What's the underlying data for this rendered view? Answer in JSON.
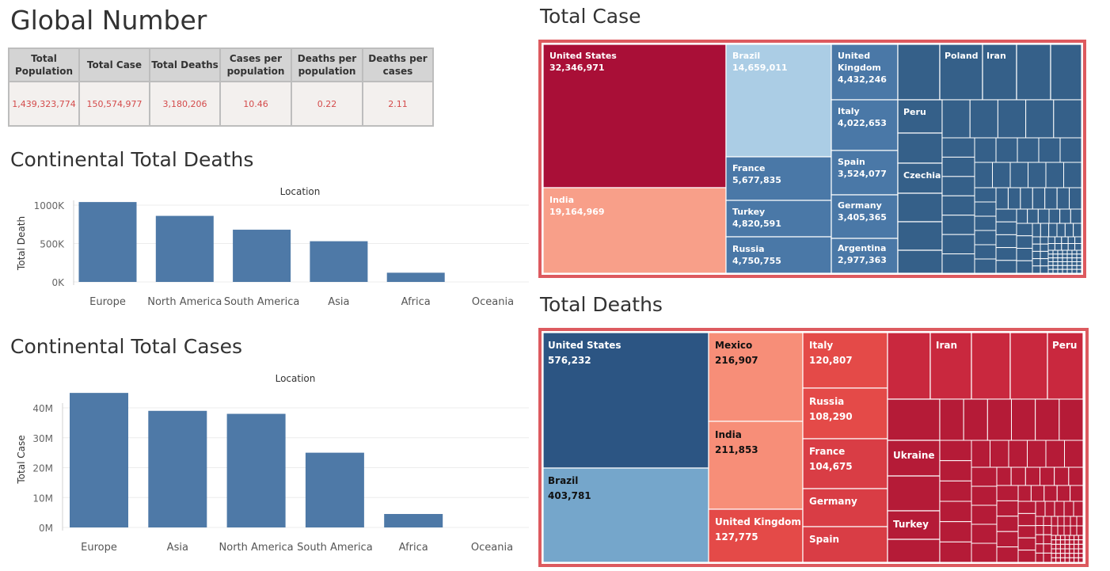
{
  "global": {
    "title": "Global Number",
    "headers": [
      "Total Population",
      "Total Case",
      "Total Deaths",
      "Cases per population",
      "Deaths per population",
      "Deaths per cases"
    ],
    "values": [
      "1,439,323,774",
      "150,574,977",
      "3,180,206",
      "10.46",
      "0.22",
      "2.11"
    ]
  },
  "deaths_section": {
    "title": "Continental Total Deaths"
  },
  "cases_section": {
    "title": "Continental Total Cases"
  },
  "total_case_section": {
    "title": "Total Case"
  },
  "total_deaths_section": {
    "title": "Total Deaths"
  },
  "colors": {
    "bar": "#4e79a7",
    "frame": "#dd5a5f"
  },
  "chart_data": [
    {
      "type": "bar",
      "title": "",
      "xlabel": "Location",
      "ylabel": "Total Death",
      "categories": [
        "Europe",
        "North America",
        "South America",
        "Asia",
        "Africa",
        "Oceania"
      ],
      "values": [
        1040000,
        860000,
        680000,
        530000,
        120000,
        1000
      ],
      "yticks": [
        "0K",
        "500K",
        "1000K"
      ],
      "ylim": [
        0,
        1000000
      ],
      "grid": true
    },
    {
      "type": "bar",
      "title": "",
      "xlabel": "Location",
      "ylabel": "Total Case",
      "categories": [
        "Europe",
        "Asia",
        "North America",
        "South America",
        "Africa",
        "Oceania"
      ],
      "values": [
        45000000,
        39000000,
        38000000,
        25000000,
        4500000,
        50000
      ],
      "yticks": [
        "0M",
        "10M",
        "20M",
        "30M",
        "40M"
      ],
      "ylim": [
        0,
        40000000
      ],
      "grid": true
    },
    {
      "type": "treemap",
      "title": "Total Case",
      "labels": [
        {
          "name": "United States",
          "value": "32,346,971"
        },
        {
          "name": "India",
          "value": "19,164,969"
        },
        {
          "name": "Brazil",
          "value": "14,659,011"
        },
        {
          "name": "France",
          "value": "5,677,835"
        },
        {
          "name": "Turkey",
          "value": "4,820,591"
        },
        {
          "name": "Russia",
          "value": "4,750,755"
        },
        {
          "name": "United Kingdom",
          "value": "4,432,246"
        },
        {
          "name": "Italy",
          "value": "4,022,653"
        },
        {
          "name": "Spain",
          "value": "3,524,077"
        },
        {
          "name": "Germany",
          "value": "3,405,365"
        },
        {
          "name": "Argentina",
          "value": "2,977,363"
        },
        {
          "name": "Poland",
          "value": ""
        },
        {
          "name": "Iran",
          "value": ""
        },
        {
          "name": "Peru",
          "value": ""
        },
        {
          "name": "Czechia",
          "value": ""
        }
      ]
    },
    {
      "type": "treemap",
      "title": "Total Deaths",
      "labels": [
        {
          "name": "United States",
          "value": "576,232"
        },
        {
          "name": "Brazil",
          "value": "403,781"
        },
        {
          "name": "Mexico",
          "value": "216,907"
        },
        {
          "name": "India",
          "value": "211,853"
        },
        {
          "name": "United Kingdom",
          "value": "127,775"
        },
        {
          "name": "Italy",
          "value": "120,807"
        },
        {
          "name": "Russia",
          "value": "108,290"
        },
        {
          "name": "France",
          "value": "104,675"
        },
        {
          "name": "Germany",
          "value": ""
        },
        {
          "name": "Spain",
          "value": ""
        },
        {
          "name": "Iran",
          "value": ""
        },
        {
          "name": "Peru",
          "value": ""
        },
        {
          "name": "Ukraine",
          "value": ""
        },
        {
          "name": "Turkey",
          "value": ""
        }
      ]
    }
  ]
}
